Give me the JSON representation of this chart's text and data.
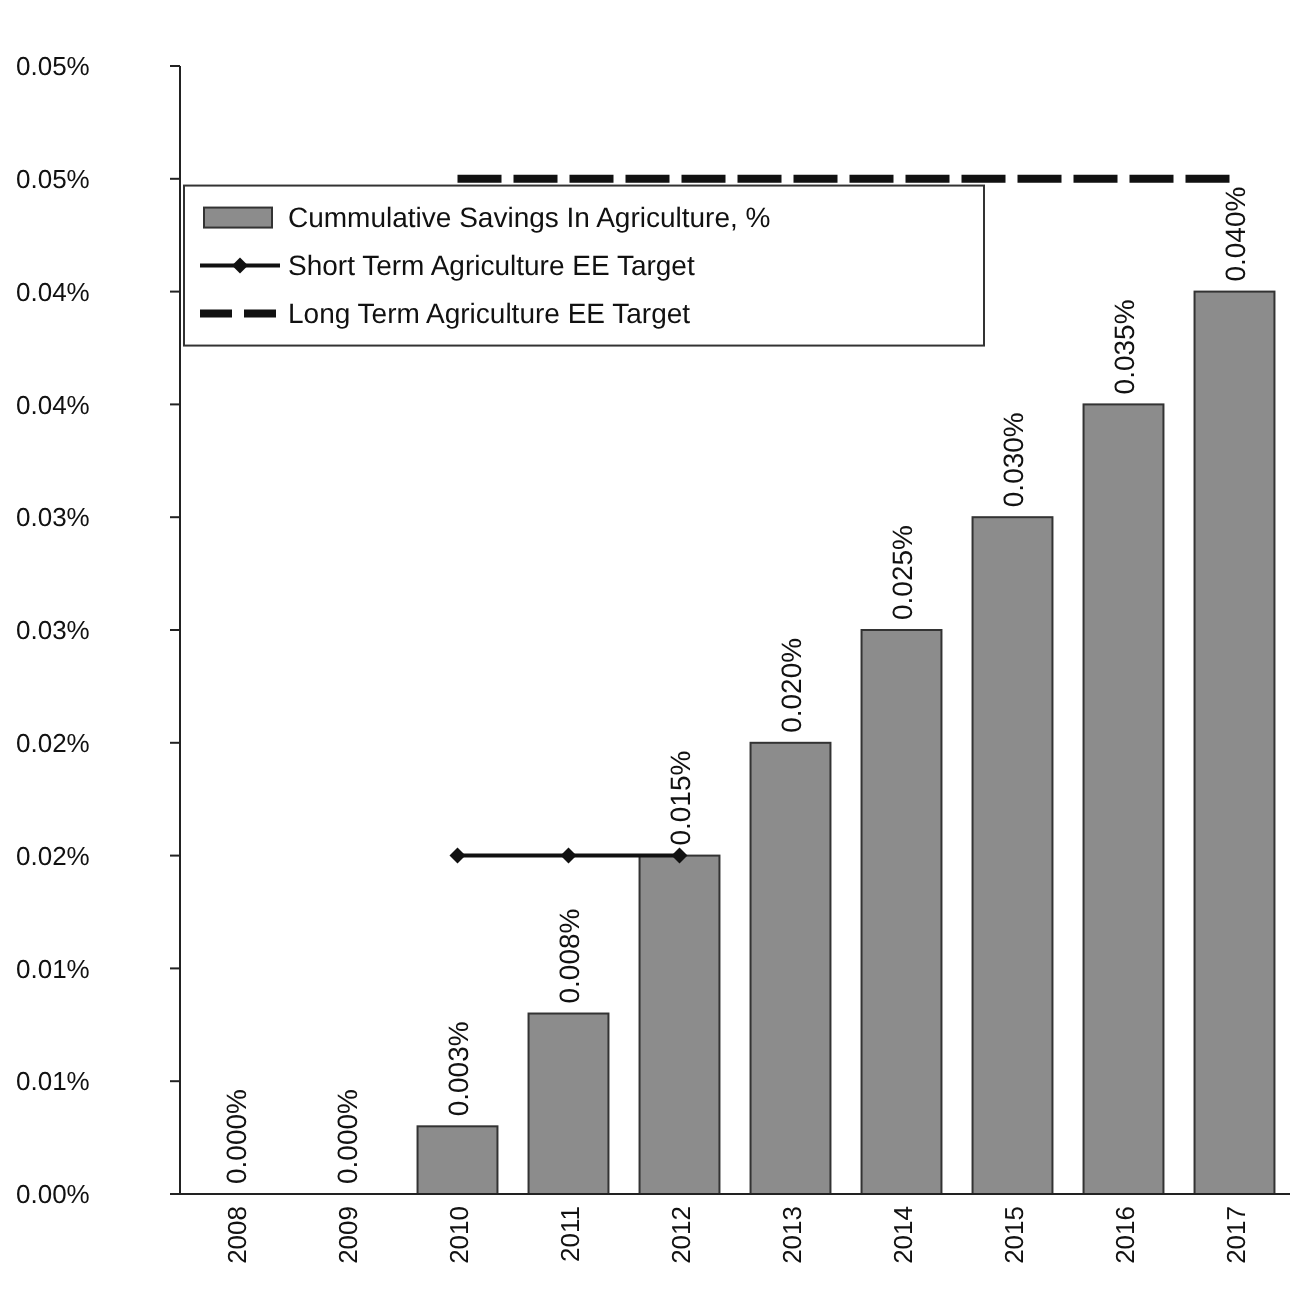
{
  "chart_data": {
    "type": "bar",
    "categories": [
      "2008",
      "2009",
      "2010",
      "2011",
      "2012",
      "2013",
      "2014",
      "2015",
      "2016",
      "2017"
    ],
    "ylim": [
      0,
      0.05
    ],
    "yticks": [
      {
        "value": 0,
        "label": "0.00%"
      },
      {
        "value": 0.005,
        "label": "0.01%"
      },
      {
        "value": 0.01,
        "label": "0.01%"
      },
      {
        "value": 0.015,
        "label": "0.02%"
      },
      {
        "value": 0.02,
        "label": "0.02%"
      },
      {
        "value": 0.025,
        "label": "0.03%"
      },
      {
        "value": 0.03,
        "label": "0.03%"
      },
      {
        "value": 0.035,
        "label": "0.04%"
      },
      {
        "value": 0.04,
        "label": "0.04%"
      },
      {
        "value": 0.045,
        "label": "0.05%"
      },
      {
        "value": 0.05,
        "label": "0.05%"
      }
    ],
    "series": [
      {
        "name": "Cummulative Savings In Agriculture, %",
        "color": "#8c8c8c",
        "values": [
          0,
          0,
          0.003,
          0.008,
          0.015,
          0.02,
          0.025,
          0.03,
          0.035,
          0.04
        ],
        "value_labels": [
          "0.000%",
          "0.000%",
          "0.003%",
          "0.008%",
          "0.015%",
          "0.020%",
          "0.025%",
          "0.030%",
          "0.035%",
          "0.040%"
        ]
      },
      {
        "name": "Short Term Agriculture EE Target",
        "type": "line",
        "color": "#111111",
        "marker": "diamond",
        "line_style": "solid",
        "values": [
          null,
          null,
          0.015,
          0.015,
          0.015,
          null,
          null,
          null,
          null,
          null
        ]
      },
      {
        "name": "Long Term Agriculture EE Target",
        "type": "line",
        "color": "#111111",
        "marker": "none",
        "line_style": "dashed",
        "values": [
          null,
          null,
          0.045,
          0.045,
          0.045,
          0.045,
          0.045,
          0.045,
          0.045,
          0.045
        ]
      }
    ],
    "legend": "top left",
    "grid": false
  }
}
